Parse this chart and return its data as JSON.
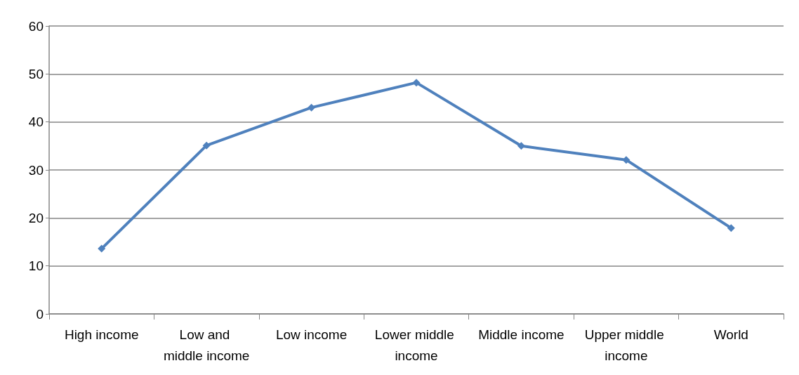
{
  "chart_data": {
    "type": "line",
    "categories": [
      "High income",
      "Low and middle income",
      "Low income",
      "Lower middle income",
      "Middle income",
      "Upper middle income",
      "World"
    ],
    "series": [
      {
        "color": "#4f81bd",
        "values": [
          13.6,
          35.1,
          43.0,
          48.2,
          35.0,
          32.1,
          17.9
        ]
      }
    ],
    "ylim": [
      0,
      60
    ],
    "yticks": [
      0,
      10,
      20,
      30,
      40,
      50,
      60
    ],
    "grid": "y",
    "marker": "diamond",
    "line_style": "solid"
  }
}
